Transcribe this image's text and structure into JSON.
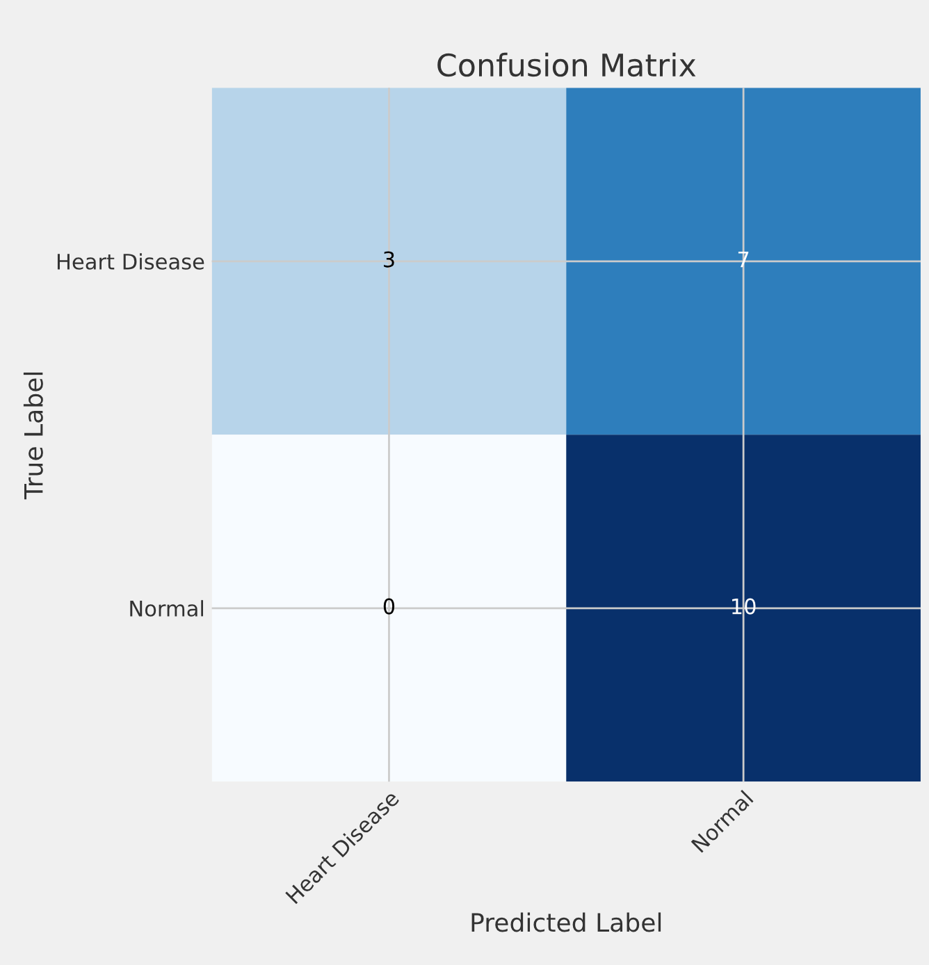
{
  "chart_data": {
    "type": "heatmap",
    "title": "Confusion Matrix",
    "xlabel": "Predicted Label",
    "ylabel": "True Label",
    "categories": [
      "Heart Disease",
      "Normal"
    ],
    "y_categories": [
      "Heart Disease",
      "Normal"
    ],
    "cells": [
      [
        3,
        7
      ],
      [
        0,
        10
      ]
    ],
    "data_labels": true,
    "grid": true
  }
}
